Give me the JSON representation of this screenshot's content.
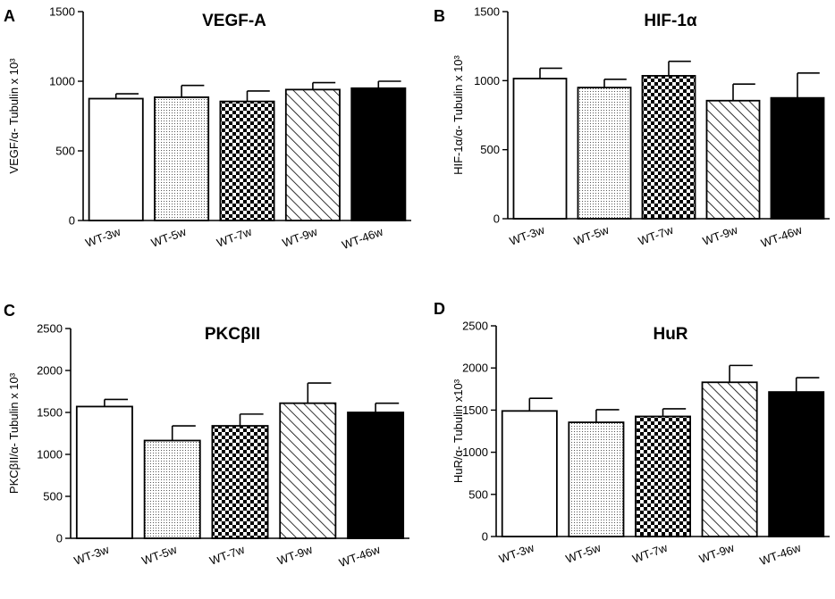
{
  "figure": {
    "categories": [
      "WT-3w",
      "WT-5w",
      "WT-7w",
      "WT-9w",
      "WT-46w"
    ],
    "fills": [
      "white",
      "dots",
      "checker",
      "hatch",
      "black"
    ]
  },
  "chart_data": [
    {
      "type": "bar",
      "panel": "A",
      "title": "VEGF-A",
      "ylabel": "VEGF/α- Tubulin x 10³",
      "categories": [
        "WT-3w",
        "WT-5w",
        "WT-7w",
        "WT-9w",
        "WT-46w"
      ],
      "values": [
        875,
        885,
        855,
        940,
        950
      ],
      "errors": [
        35,
        85,
        75,
        50,
        50
      ],
      "ylim": [
        0,
        1500
      ],
      "yticks": [
        0,
        500,
        1000,
        1500
      ]
    },
    {
      "type": "bar",
      "panel": "B",
      "title": "HIF-1α",
      "ylabel": "HIF-1α/α- Tubulin x 10³",
      "categories": [
        "WT-3w",
        "WT-5w",
        "WT-7w",
        "WT-9w",
        "WT-46w"
      ],
      "values": [
        1015,
        950,
        1035,
        855,
        875
      ],
      "errors": [
        75,
        60,
        105,
        120,
        180
      ],
      "ylim": [
        0,
        1500
      ],
      "yticks": [
        0,
        500,
        1000,
        1500
      ]
    },
    {
      "type": "bar",
      "panel": "C",
      "title": "PKCβII",
      "ylabel": "PKCβII/α- Tubulin x 10³",
      "categories": [
        "WT-3w",
        "WT-5w",
        "WT-7w",
        "WT-9w",
        "WT-46w"
      ],
      "values": [
        1570,
        1165,
        1340,
        1610,
        1500
      ],
      "errors": [
        85,
        175,
        140,
        240,
        110
      ],
      "ylim": [
        0,
        2500
      ],
      "yticks": [
        0,
        500,
        1000,
        1500,
        2000,
        2500
      ]
    },
    {
      "type": "bar",
      "panel": "D",
      "title": "HuR",
      "ylabel": "HuR/α- Tubulin x10³",
      "categories": [
        "WT-3w",
        "WT-5w",
        "WT-7w",
        "WT-9w",
        "WT-46w"
      ],
      "values": [
        1490,
        1355,
        1425,
        1830,
        1715
      ],
      "errors": [
        150,
        150,
        90,
        200,
        170
      ],
      "ylim": [
        0,
        2500
      ],
      "yticks": [
        0,
        500,
        1000,
        1500,
        2000,
        2500
      ]
    }
  ]
}
